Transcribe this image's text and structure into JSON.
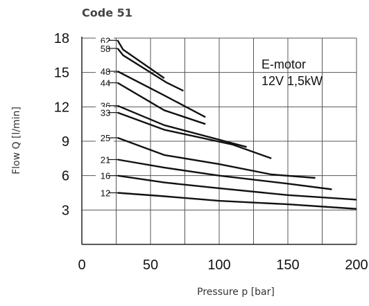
{
  "chart_data": {
    "type": "line",
    "title": "Code 51",
    "xlabel": "Pressure p [bar]",
    "ylabel": "Flow Q [l/min]",
    "xlim": [
      0,
      200
    ],
    "ylim": [
      0,
      18
    ],
    "x_ticks": [
      "0",
      "50",
      "100",
      "150",
      "200"
    ],
    "y_ticks": [
      "3",
      "6",
      "9",
      "12",
      "15",
      "18"
    ],
    "grid": true,
    "annotation": [
      "E-motor",
      "12V 1,5kW"
    ],
    "series": [
      {
        "name": "62",
        "points": [
          [
            26,
            17.8
          ],
          [
            30,
            17.0
          ],
          [
            60,
            14.5
          ]
        ]
      },
      {
        "name": "58",
        "points": [
          [
            26,
            17.1
          ],
          [
            30,
            16.5
          ],
          [
            62,
            14.1
          ],
          [
            74,
            13.4
          ]
        ]
      },
      {
        "name": "48",
        "points": [
          [
            26,
            15.1
          ],
          [
            60,
            13.0
          ],
          [
            90,
            11.1
          ]
        ]
      },
      {
        "name": "44",
        "points": [
          [
            26,
            14.1
          ],
          [
            60,
            11.7
          ],
          [
            90,
            10.5
          ]
        ]
      },
      {
        "name": "36",
        "points": [
          [
            26,
            12.1
          ],
          [
            60,
            10.4
          ],
          [
            120,
            8.5
          ]
        ]
      },
      {
        "name": "33",
        "points": [
          [
            26,
            11.5
          ],
          [
            60,
            10.0
          ],
          [
            110,
            8.7
          ],
          [
            138,
            7.5
          ]
        ]
      },
      {
        "name": "25",
        "points": [
          [
            26,
            9.3
          ],
          [
            60,
            7.8
          ],
          [
            100,
            7.0
          ],
          [
            138,
            6.1
          ],
          [
            170,
            5.8
          ]
        ]
      },
      {
        "name": "21",
        "points": [
          [
            26,
            7.4
          ],
          [
            60,
            6.7
          ],
          [
            100,
            6.0
          ],
          [
            150,
            5.3
          ],
          [
            182,
            4.8
          ]
        ]
      },
      {
        "name": "16",
        "points": [
          [
            26,
            6.0
          ],
          [
            60,
            5.4
          ],
          [
            100,
            4.9
          ],
          [
            150,
            4.3
          ],
          [
            200,
            3.9
          ]
        ]
      },
      {
        "name": "12",
        "points": [
          [
            26,
            4.5
          ],
          [
            60,
            4.2
          ],
          [
            100,
            3.8
          ],
          [
            150,
            3.5
          ],
          [
            200,
            3.1
          ]
        ]
      }
    ]
  }
}
